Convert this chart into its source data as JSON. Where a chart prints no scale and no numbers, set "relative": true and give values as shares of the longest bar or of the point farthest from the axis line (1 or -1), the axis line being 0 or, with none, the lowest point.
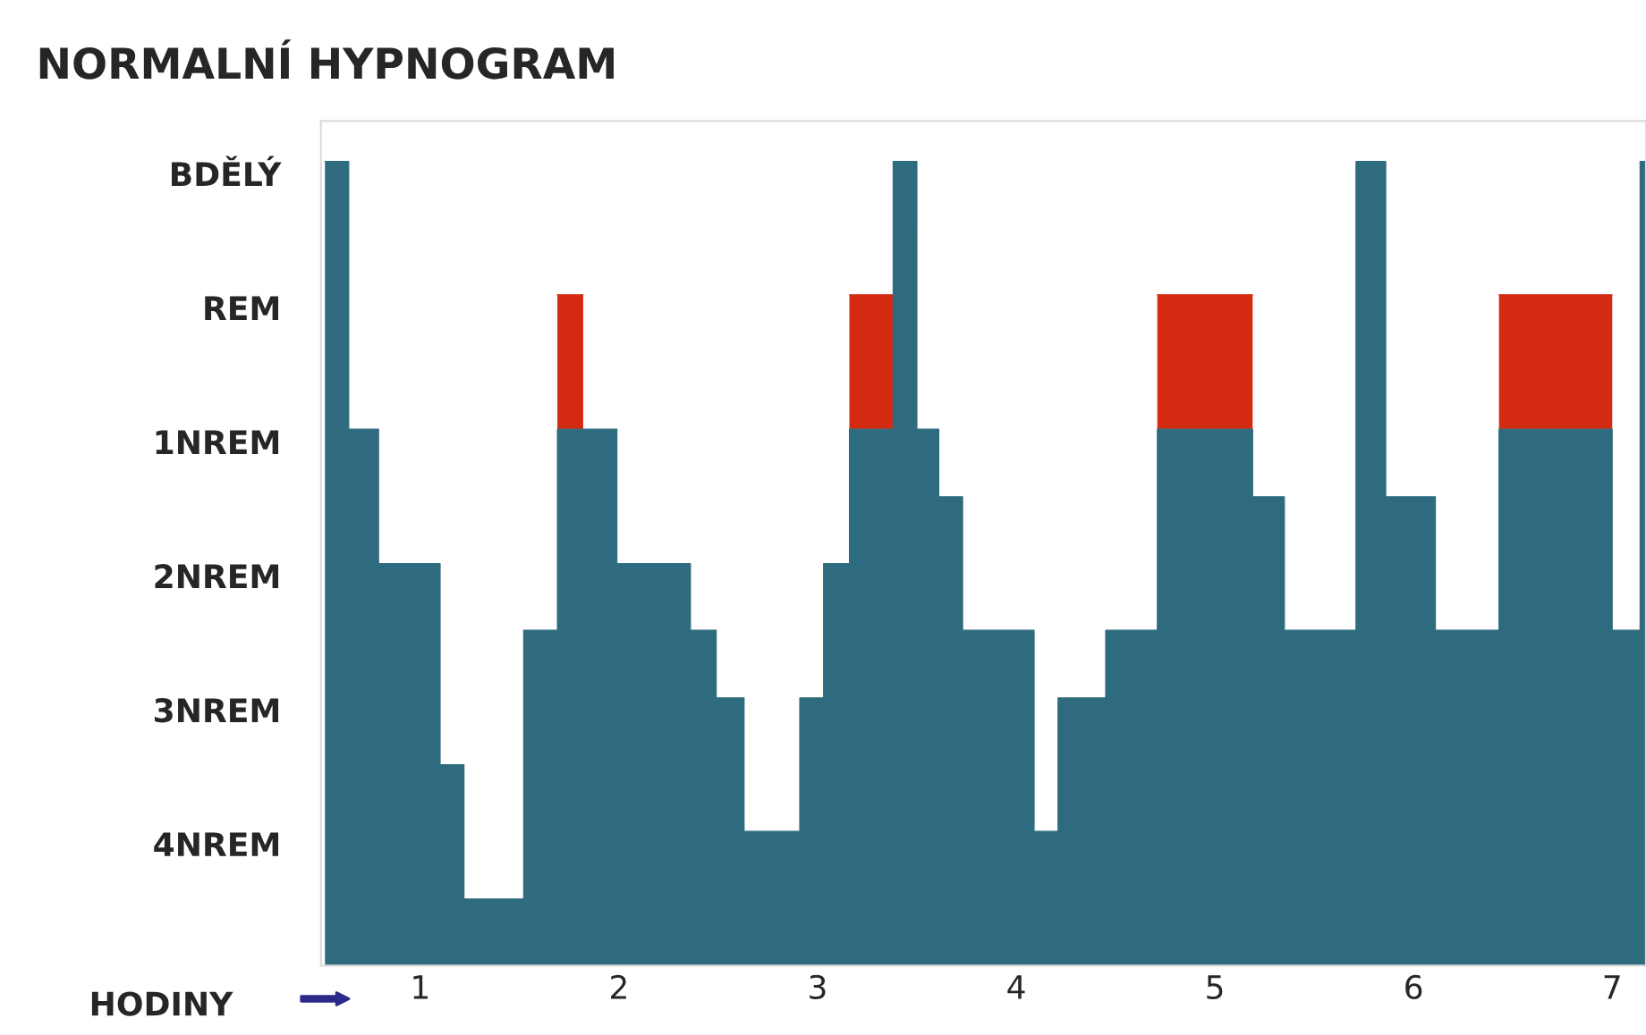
{
  "chart_data": {
    "type": "area",
    "title": "NORMALNÍ HYPNOGRAM",
    "xlabel": "HODINY",
    "stacked": true,
    "relative": true,
    "x": [
      0.52,
      0.64,
      0.64,
      0.79,
      0.79,
      1.1,
      1.1,
      1.22,
      1.22,
      1.52,
      1.52,
      1.69,
      1.69,
      1.82,
      1.82,
      1.99,
      1.99,
      2.36,
      2.36,
      2.49,
      2.49,
      2.63,
      2.63,
      2.91,
      2.91,
      3.03,
      3.03,
      3.16,
      3.16,
      3.38,
      3.38,
      3.5,
      3.5,
      3.61,
      3.61,
      3.73,
      3.73,
      4.09,
      4.09,
      4.21,
      4.21,
      4.45,
      4.45,
      4.71,
      4.71,
      5.19,
      5.19,
      5.35,
      5.35,
      5.71,
      5.71,
      5.86,
      5.86,
      6.11,
      6.11,
      6.43,
      6.43,
      7.0,
      7.0,
      7.14,
      7.14,
      7.17
    ],
    "series": [
      {
        "color": "#2e6b7e",
        "values": [
          1,
          1,
          0.667,
          0.667,
          0.5,
          0.5,
          0.25,
          0.25,
          0.083,
          0.083,
          0.417,
          0.417,
          0.667,
          0.667,
          0.667,
          0.667,
          0.5,
          0.5,
          0.417,
          0.417,
          0.333,
          0.333,
          0.167,
          0.167,
          0.333,
          0.333,
          0.5,
          0.5,
          0.667,
          0.667,
          1,
          1,
          0.667,
          0.667,
          0.583,
          0.583,
          0.417,
          0.417,
          0.167,
          0.167,
          0.333,
          0.333,
          0.417,
          0.417,
          0.667,
          0.667,
          0.583,
          0.583,
          0.417,
          0.417,
          1,
          1,
          0.583,
          0.583,
          0.417,
          0.417,
          0.667,
          0.667,
          0.417,
          0.417,
          1,
          1
        ]
      },
      {
        "color": "#d42a12",
        "values": [
          null,
          null,
          null,
          null,
          null,
          null,
          null,
          null,
          null,
          null,
          null,
          null,
          0.167,
          0.167,
          null,
          null,
          null,
          null,
          null,
          null,
          null,
          null,
          null,
          null,
          null,
          null,
          null,
          null,
          0.167,
          0.167,
          null,
          null,
          null,
          null,
          null,
          null,
          null,
          null,
          null,
          null,
          null,
          null,
          null,
          null,
          0.167,
          0.167,
          null,
          null,
          null,
          null,
          null,
          null,
          null,
          null,
          null,
          null,
          0.167,
          0.167,
          null,
          null,
          null,
          null
        ]
      }
    ],
    "xlim": [
      0.5,
      7.17
    ],
    "xticks": [
      1,
      2,
      3,
      4,
      5,
      6,
      7
    ],
    "annotations": [
      "BDĚLÝ",
      "REM",
      "1NREM",
      "2NREM",
      "3NREM",
      "4NREM"
    ],
    "grid": false,
    "legend": false
  }
}
